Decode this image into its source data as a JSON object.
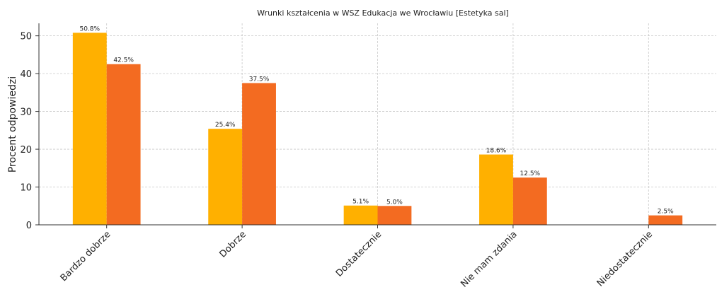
{
  "chart_data": {
    "type": "bar",
    "title": "Wrunki kształcenia w WSZ Edukacja we Wrocławiu [Estetyka sal]",
    "y_label": "Procent odpowiedzi",
    "categories": [
      "Bardzo dobrze",
      "Dobrze",
      "Dostatecznie",
      "Nie mam zdania",
      "Niedostatecznie"
    ],
    "series": [
      {
        "color": "#ffb000",
        "values": [
          50.8,
          25.4,
          5.1,
          18.6,
          null
        ],
        "value_labels": [
          "50.8%",
          "25.4%",
          "5.1%",
          "18.6%",
          null
        ]
      },
      {
        "color": "#f36b21",
        "values": [
          42.5,
          37.5,
          5.0,
          12.5,
          2.5
        ],
        "value_labels": [
          "42.5%",
          "37.5%",
          "5.0%",
          "12.5%",
          "2.5%"
        ]
      }
    ],
    "ylim": [
      0,
      53.3
    ],
    "yticks": [
      0,
      10,
      20,
      30,
      40,
      50
    ],
    "grid": true
  }
}
